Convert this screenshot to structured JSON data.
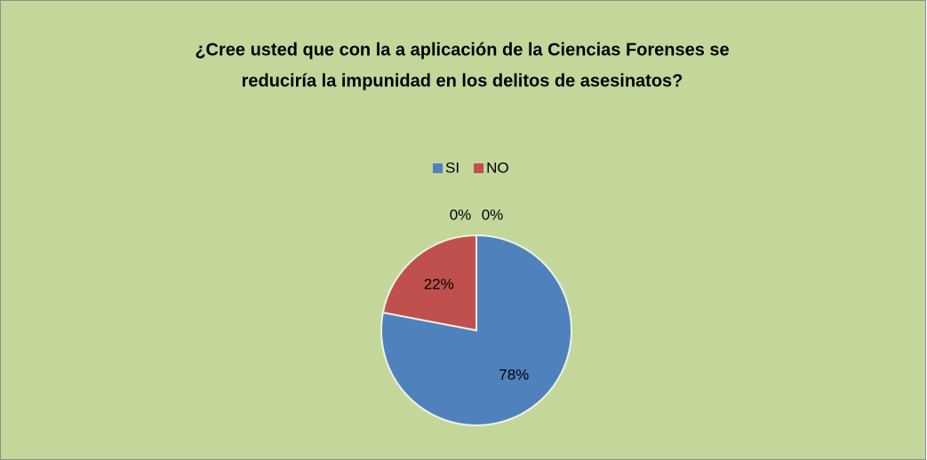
{
  "chart_data": {
    "type": "pie",
    "title": [
      "¿Cree usted que con la a aplicación de la Ciencias Forenses se",
      "reduciría la impunidad en los delitos de asesinatos?"
    ],
    "categories": [
      "SI",
      "NO",
      null,
      null
    ],
    "values": [
      78,
      22,
      0,
      0
    ],
    "value_labels": [
      "78%",
      "22%",
      "0%",
      "0%"
    ],
    "colors": [
      "#4f81bd",
      "#c0504d",
      "#9bbb59",
      "#8064a2"
    ],
    "legend": "top"
  }
}
